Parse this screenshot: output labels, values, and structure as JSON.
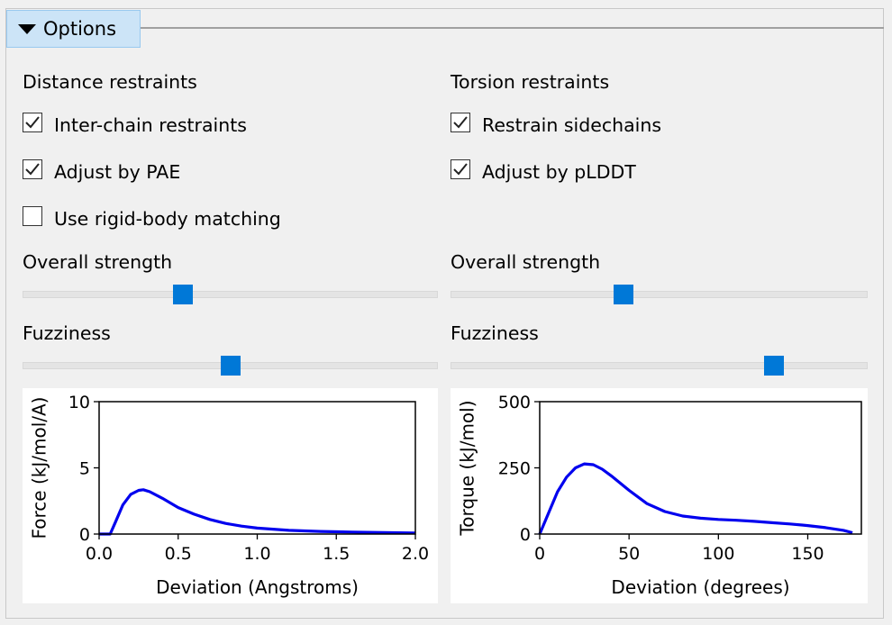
{
  "options_tab": {
    "label": "Options",
    "icon": "triangle-down-icon"
  },
  "distance": {
    "heading": "Distance restraints",
    "checkboxes": [
      {
        "label": "Inter-chain restraints",
        "checked": true
      },
      {
        "label": "Adjust by PAE",
        "checked": true
      },
      {
        "label": "Use rigid-body matching",
        "checked": false
      }
    ],
    "strength_label": "Overall strength",
    "strength_value": 0.38,
    "fuzziness_label": "Fuzziness",
    "fuzziness_value": 0.5
  },
  "torsion": {
    "heading": "Torsion restraints",
    "checkboxes": [
      {
        "label": "Restrain sidechains",
        "checked": true
      },
      {
        "label": "Adjust by pLDDT",
        "checked": true
      }
    ],
    "strength_label": "Overall strength",
    "strength_value": 0.41,
    "fuzziness_label": "Fuzziness",
    "fuzziness_value": 0.79
  },
  "accent_color": "#0078d7",
  "chart_data": [
    {
      "type": "line",
      "xlabel": "Deviation (Angstroms)",
      "ylabel": "Force (kJ/mol/A)",
      "xlim": [
        0,
        2.0
      ],
      "ylim": [
        0,
        10
      ],
      "xticks": [
        "0.0",
        "0.5",
        "1.0",
        "1.5",
        "2.0"
      ],
      "xtick_values": [
        0,
        0.5,
        1.0,
        1.5,
        2.0
      ],
      "yticks": [
        "0",
        "5",
        "10"
      ],
      "ytick_values": [
        0,
        5,
        10
      ],
      "series": [
        {
          "name": "force",
          "color": "#0000ee",
          "x": [
            0,
            0.07,
            0.1,
            0.15,
            0.2,
            0.25,
            0.28,
            0.32,
            0.4,
            0.5,
            0.6,
            0.7,
            0.8,
            0.9,
            1.0,
            1.2,
            1.4,
            1.6,
            1.8,
            2.0
          ],
          "y": [
            0,
            0,
            0.8,
            2.2,
            3.0,
            3.3,
            3.35,
            3.2,
            2.7,
            2.0,
            1.5,
            1.1,
            0.8,
            0.6,
            0.45,
            0.28,
            0.2,
            0.15,
            0.11,
            0.08
          ]
        }
      ]
    },
    {
      "type": "line",
      "xlabel": "Deviation (degrees)",
      "ylabel": "Torque (kJ/mol)",
      "xlim": [
        0,
        180
      ],
      "ylim": [
        0,
        500
      ],
      "xticks": [
        "0",
        "50",
        "100",
        "150"
      ],
      "xtick_values": [
        0,
        50,
        100,
        150
      ],
      "yticks": [
        "0",
        "250",
        "500"
      ],
      "ytick_values": [
        0,
        250,
        500
      ],
      "series": [
        {
          "name": "torque",
          "color": "#0000ee",
          "x": [
            0,
            5,
            10,
            15,
            20,
            25,
            30,
            35,
            40,
            50,
            60,
            70,
            80,
            90,
            100,
            110,
            120,
            130,
            140,
            150,
            160,
            170,
            175
          ],
          "y": [
            0,
            80,
            160,
            215,
            250,
            265,
            262,
            245,
            220,
            165,
            115,
            85,
            68,
            60,
            55,
            52,
            48,
            43,
            38,
            32,
            24,
            14,
            5
          ]
        }
      ]
    }
  ]
}
